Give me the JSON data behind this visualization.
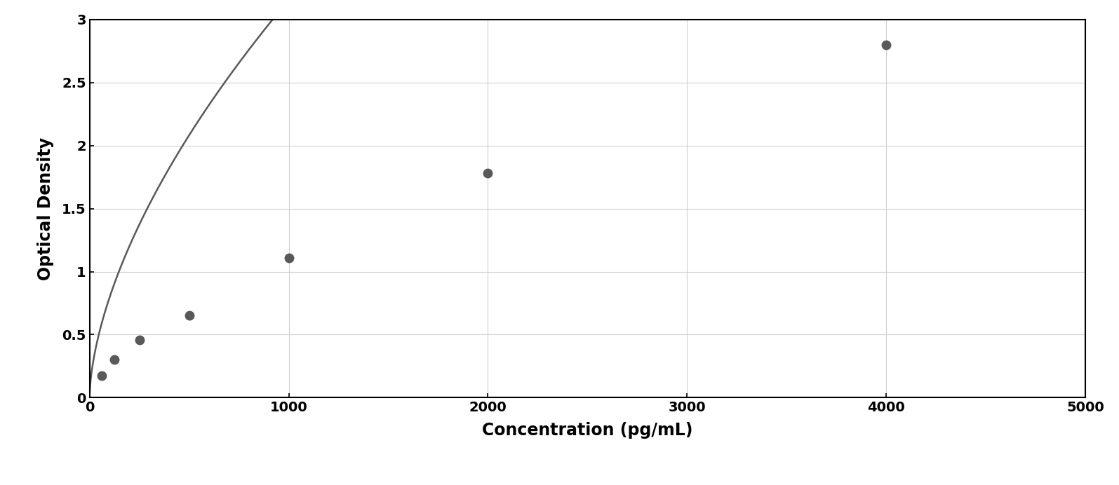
{
  "x_data": [
    62.5,
    125,
    250,
    500,
    1000,
    2000,
    4000
  ],
  "y_data": [
    0.175,
    0.305,
    0.46,
    0.655,
    1.11,
    1.78,
    2.8
  ],
  "xlabel": "Concentration (pg/mL)",
  "ylabel": "Optical Density",
  "xlim": [
    0,
    5000
  ],
  "ylim": [
    0,
    3.0
  ],
  "xticks": [
    0,
    1000,
    2000,
    3000,
    4000,
    5000
  ],
  "yticks": [
    0,
    0.5,
    1.0,
    1.5,
    2.0,
    2.5,
    3.0
  ],
  "data_color": "#595959",
  "line_color": "#595959",
  "grid_color": "#d0d0d0",
  "background_color": "#ffffff",
  "border_color": "#000000",
  "xlabel_fontsize": 17,
  "ylabel_fontsize": 17,
  "tick_fontsize": 14,
  "marker_size": 9,
  "line_width": 1.8
}
